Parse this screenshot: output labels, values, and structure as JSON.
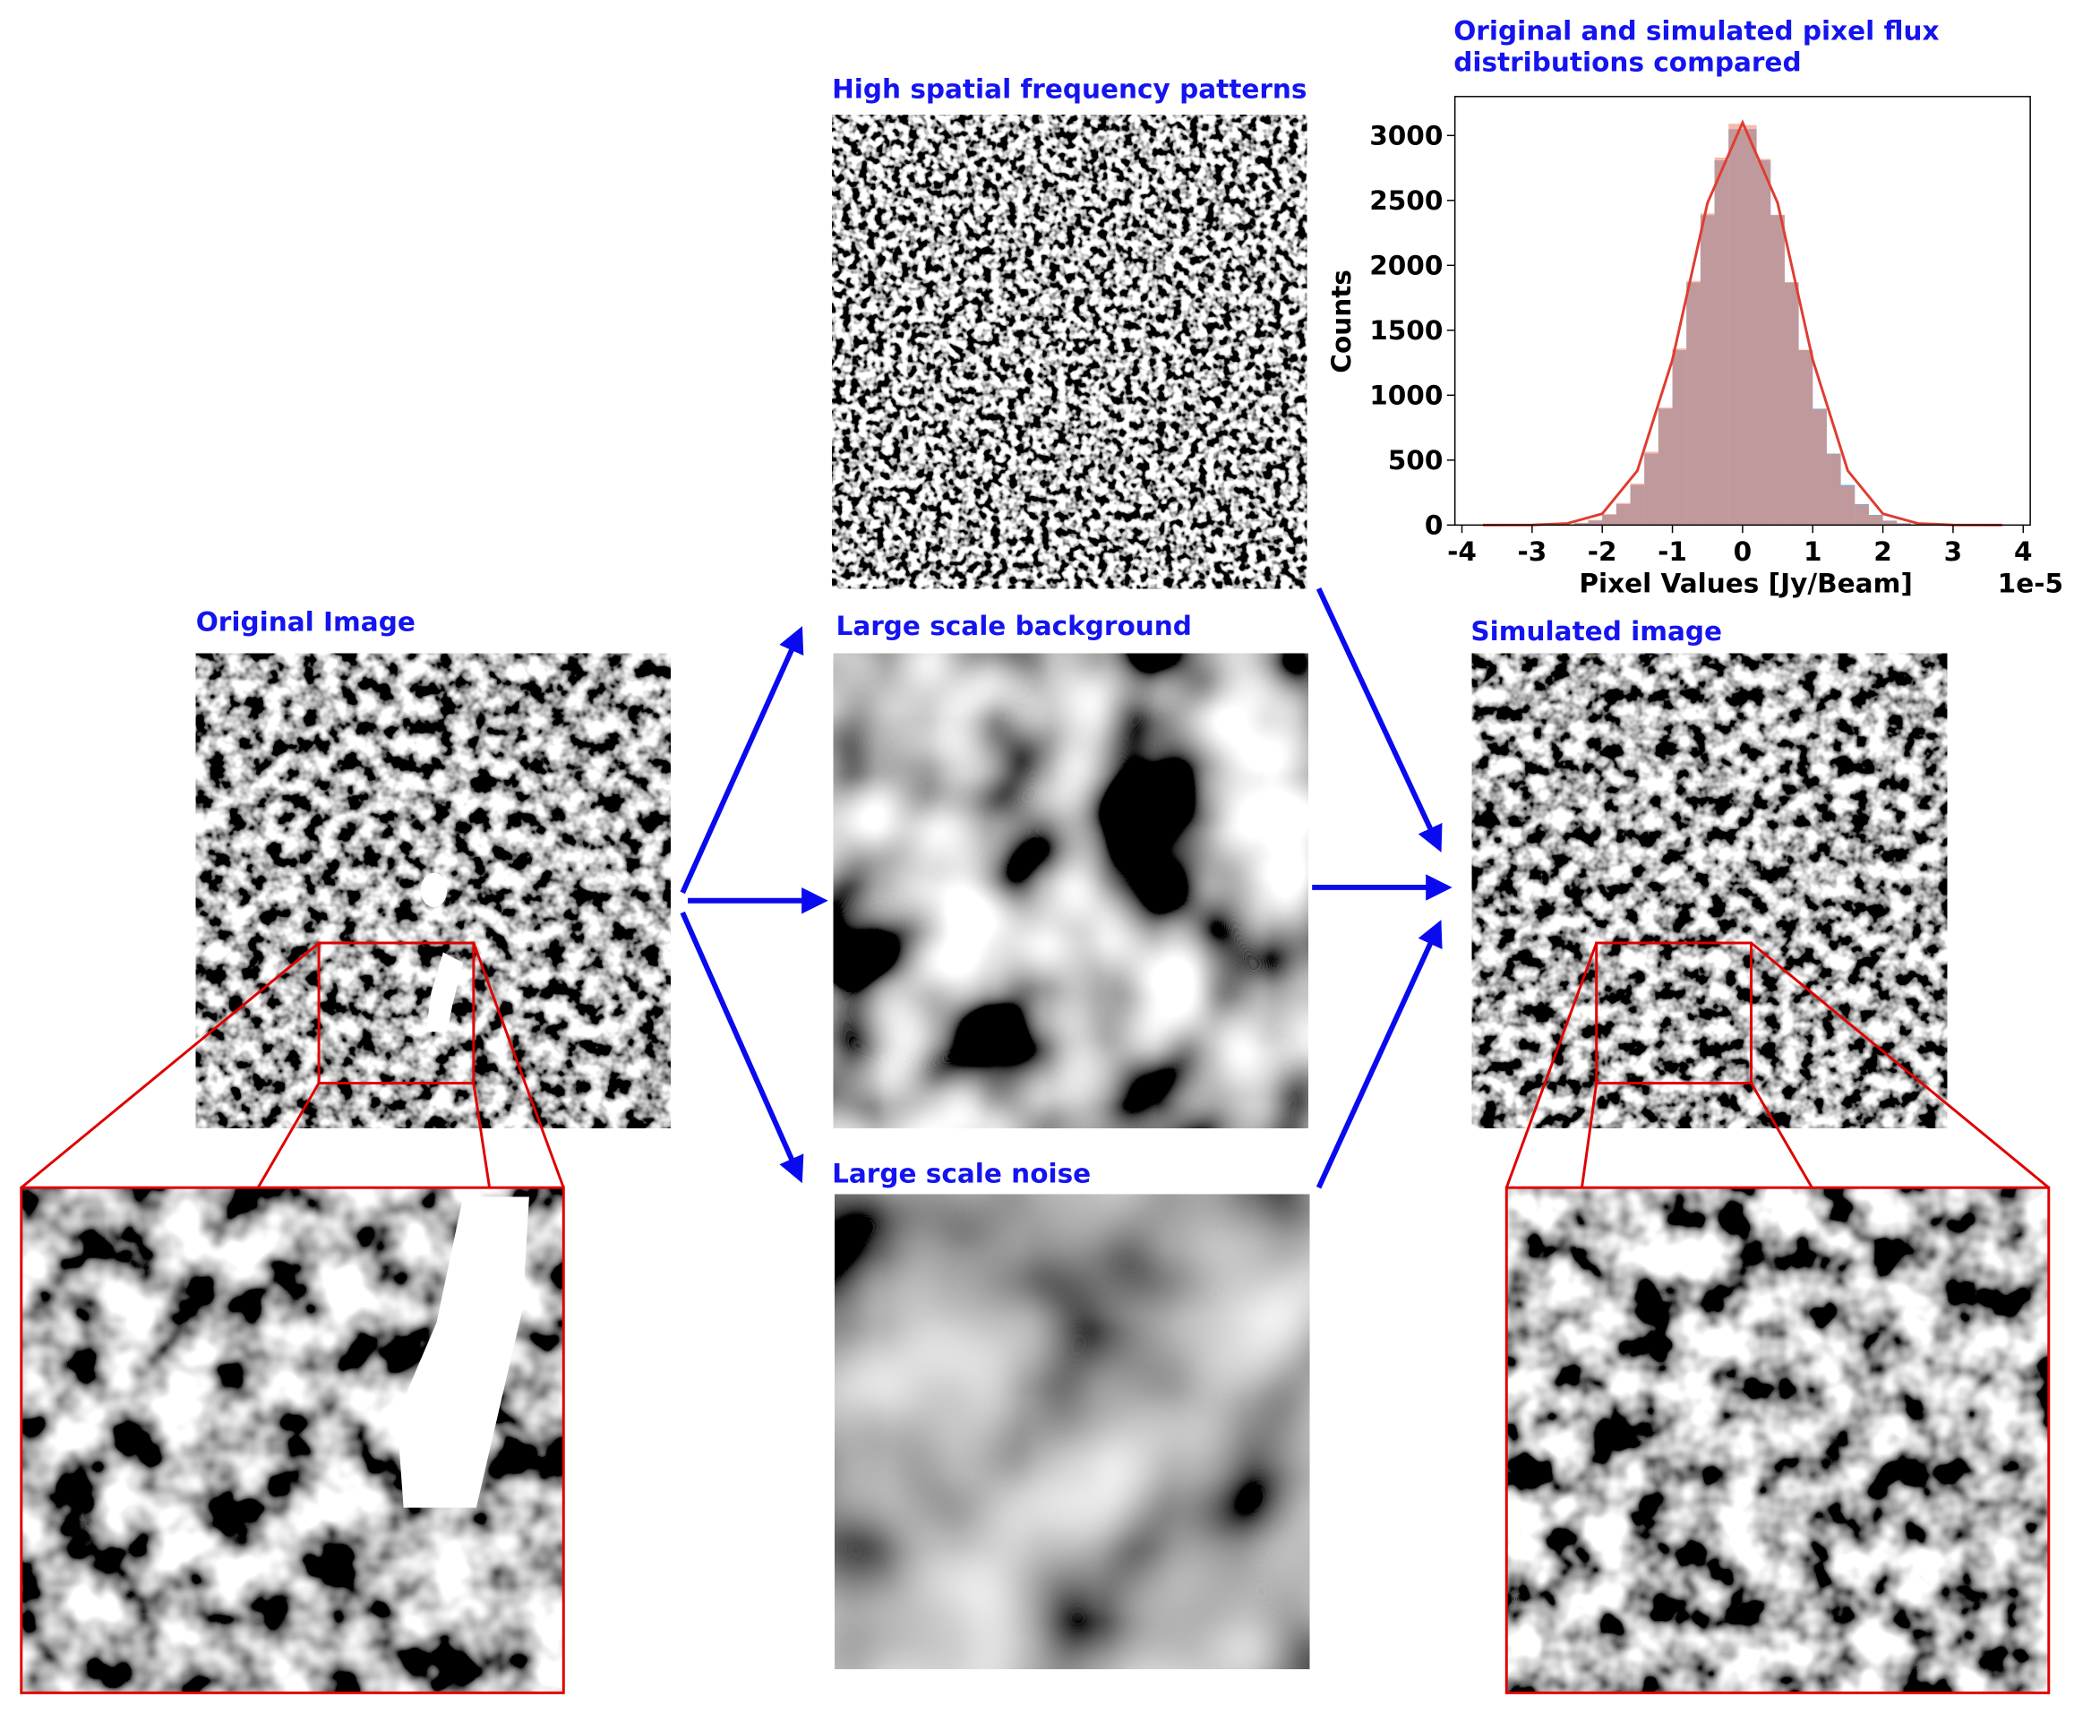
{
  "labels": {
    "high_freq": "High spatial frequency patterns",
    "original": "Original Image",
    "background": "Large scale background",
    "simulated": "Simulated image",
    "noise": "Large scale noise"
  },
  "chart_data": {
    "type": "histogram",
    "title": [
      "Original and simulated pixel flux",
      "distributions compared"
    ],
    "xlabel": "Pixel Values [Jy/Beam]",
    "ylabel": "Counts",
    "x_offset_label": "1e-5",
    "xlim": [
      -4.1,
      4.1
    ],
    "ylim": [
      0,
      3300
    ],
    "xticks": [
      -4,
      -3,
      -2,
      -1,
      0,
      1,
      2,
      3,
      4
    ],
    "yticks": [
      0,
      500,
      1000,
      1500,
      2000,
      2500,
      3000
    ],
    "bins": [
      -2.4,
      -2.2,
      -2.0,
      -1.8,
      -1.6,
      -1.4,
      -1.2,
      -1.0,
      -0.8,
      -0.6,
      -0.4,
      -0.2,
      0,
      0.2,
      0.4,
      0.6,
      0.8,
      1.0,
      1.2,
      1.4,
      1.6,
      1.8,
      2.0,
      2.2,
      2.4
    ],
    "opacity": 0.6,
    "series": [
      {
        "color": "#1f77b4",
        "values": [
          14,
          34,
          78,
          161,
          309,
          550,
          896,
          1347,
          1868,
          2386,
          2809,
          3049,
          3049,
          2809,
          2386,
          1868,
          1347,
          896,
          550,
          309,
          161,
          78,
          34,
          14
        ]
      },
      {
        "color": "#f08c78",
        "values": [
          18,
          40,
          85,
          170,
          320,
          565,
          905,
          1360,
          1880,
          2400,
          2830,
          3090,
          3080,
          2820,
          2390,
          1870,
          1350,
          890,
          545,
          300,
          155,
          72,
          30,
          12
        ]
      }
    ],
    "fit": {
      "color": "#e03c31",
      "x": [
        -3.7,
        -3,
        -2.5,
        -2,
        -1.5,
        -1,
        -0.5,
        0,
        0.5,
        1,
        1.5,
        2,
        2.5,
        3,
        3.7
      ],
      "values": [
        0,
        1,
        12,
        87,
        418,
        1273,
        2480,
        3100,
        2480,
        1273,
        418,
        87,
        12,
        1,
        0
      ]
    }
  }
}
